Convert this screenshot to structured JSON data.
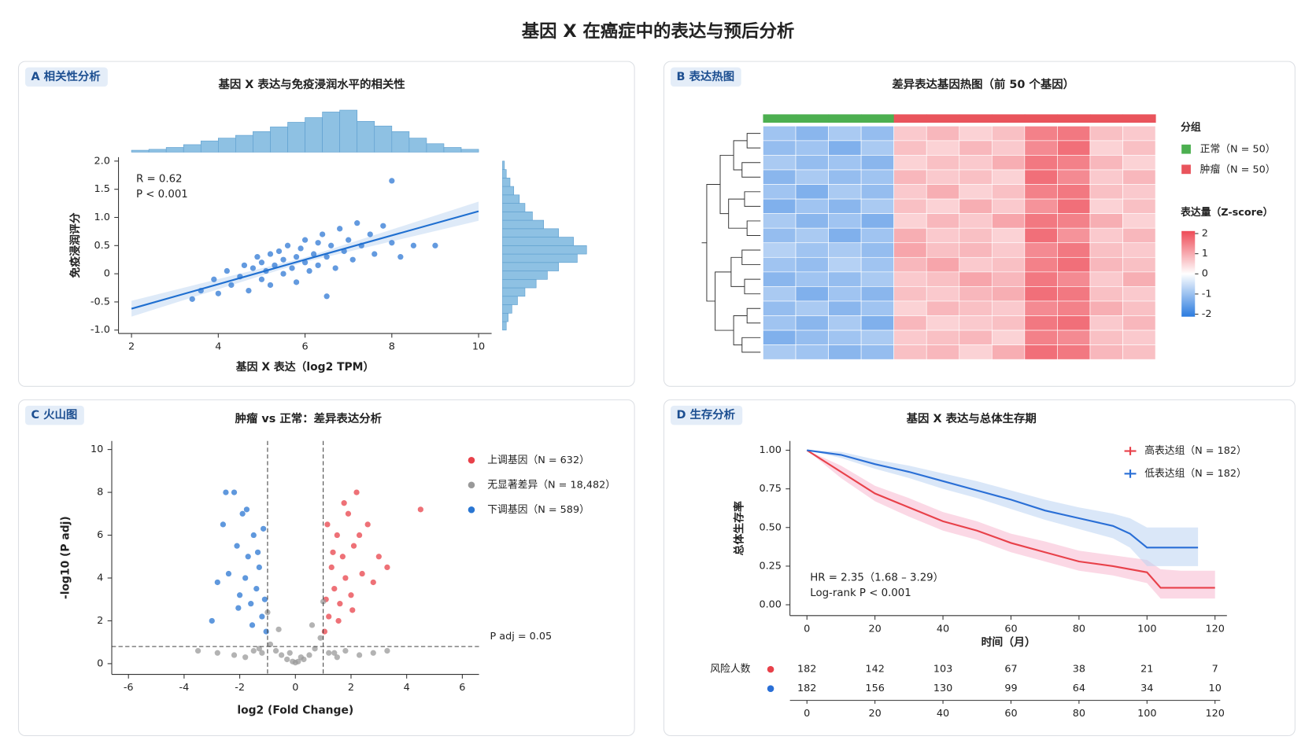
{
  "title": "基因 X 在癌症中的表达与预后分析",
  "chart_data": [
    {
      "type": "scatter",
      "panel_label": "A 相关性分析",
      "title": "基因 X 表达与免疫浸润水平的相关性",
      "x_label": "基因 X 表达（log2 TPM）",
      "y_label": "免疫浸润评分",
      "annotations": [
        "R = 0.62",
        "P < 0.001"
      ],
      "xlim": [
        1.7,
        10.3
      ],
      "xticks": [
        2,
        4,
        6,
        8,
        10
      ],
      "ylim": [
        -1.06,
        2.07
      ],
      "yticks": [
        {
          "value": -1,
          "label": "-1.0"
        },
        -0.5,
        0,
        0.5,
        {
          "value": 1,
          "label": "1.0"
        },
        1.5,
        {
          "value": 2,
          "label": "2.0"
        }
      ],
      "series": [
        {
          "color": "#2f78d4",
          "x": [
            3.4,
            3.6,
            3.9,
            4.0,
            4.2,
            4.3,
            4.5,
            4.6,
            4.7,
            4.8,
            4.9,
            5.0,
            5.0,
            5.1,
            5.2,
            5.2,
            5.3,
            5.4,
            5.5,
            5.5,
            5.6,
            5.7,
            5.8,
            5.8,
            5.9,
            6.0,
            6.0,
            6.1,
            6.2,
            6.3,
            6.3,
            6.4,
            6.5,
            6.6,
            6.7,
            6.8,
            6.9,
            7.0,
            7.1,
            7.2,
            7.3,
            7.5,
            7.6,
            7.8,
            8.0,
            8.0,
            8.2,
            8.5,
            9.0,
            6.5
          ],
          "values": [
            -0.45,
            -0.3,
            -0.1,
            -0.35,
            0.05,
            -0.2,
            -0.05,
            0.15,
            -0.3,
            0.1,
            0.3,
            -0.1,
            0.2,
            0.05,
            0.35,
            -0.2,
            0.15,
            0.4,
            0.0,
            0.25,
            0.5,
            0.1,
            0.3,
            -0.15,
            0.45,
            0.2,
            0.6,
            0.05,
            0.35,
            0.55,
            0.15,
            0.7,
            0.3,
            0.5,
            0.1,
            0.8,
            0.4,
            0.6,
            0.25,
            0.9,
            0.5,
            0.7,
            0.35,
            0.85,
            1.65,
            0.55,
            0.3,
            0.5,
            0.5,
            -0.4
          ]
        }
      ],
      "fit": {
        "color": "#1f6fd0",
        "x": [
          2,
          6,
          10
        ],
        "values": [
          -0.62,
          0.25,
          1.11
        ],
        "lower": [
          -0.76,
          0.21,
          0.94
        ],
        "upper": [
          -0.48,
          0.29,
          1.28
        ]
      },
      "top_hist": {
        "color": "#8ec1e3",
        "bins": [
          2,
          2.4,
          2.8,
          3.2,
          3.6,
          4,
          4.4,
          4.8,
          5.2,
          5.6,
          6,
          6.4,
          6.8,
          7.2,
          7.6,
          8,
          8.4,
          8.8,
          9.2,
          9.6,
          10
        ],
        "counts": [
          2,
          3,
          5,
          8,
          12,
          15,
          18,
          22,
          27,
          32,
          37,
          43,
          45,
          33,
          28,
          22,
          15,
          9,
          5,
          3
        ]
      },
      "right_hist": {
        "color": "#8ec1e3",
        "bins": [
          -1,
          -0.85,
          -0.7,
          -0.55,
          -0.4,
          -0.25,
          -0.1,
          0.05,
          0.2,
          0.35,
          0.5,
          0.65,
          0.8,
          0.95,
          1.1,
          1.25,
          1.4,
          1.55,
          1.7,
          1.85,
          2
        ],
        "counts": [
          2,
          3,
          5,
          8,
          12,
          18,
          24,
          30,
          40,
          45,
          38,
          30,
          22,
          16,
          12,
          9,
          6,
          4,
          2,
          1
        ]
      }
    },
    {
      "type": "heatmap",
      "panel_label": "B 表达热图",
      "title": "差异表达基因热图（前 50 个基因）",
      "groups": {
        "title": "分组",
        "names": [
          "正常（N = 50）",
          "肿瘤（N = 50）"
        ],
        "colors": [
          "#4caf50",
          "#e9545c"
        ]
      },
      "column_groups": [
        0,
        0,
        0,
        0,
        1,
        1,
        1,
        1,
        1,
        1,
        1,
        1
      ],
      "values": [
        [
          -0.9,
          -1.1,
          -0.8,
          -1.0,
          0.6,
          0.8,
          0.5,
          0.7,
          1.4,
          1.5,
          0.7,
          0.6
        ],
        [
          -1.0,
          -0.9,
          -1.2,
          -0.8,
          0.7,
          0.5,
          0.8,
          0.6,
          1.3,
          1.6,
          0.5,
          0.7
        ],
        [
          -0.8,
          -1.0,
          -0.9,
          -1.1,
          0.5,
          0.7,
          0.6,
          0.9,
          1.5,
          1.4,
          0.8,
          0.5
        ],
        [
          -1.1,
          -0.8,
          -1.0,
          -0.9,
          0.8,
          0.6,
          0.7,
          0.5,
          1.6,
          1.3,
          0.6,
          0.8
        ],
        [
          -0.9,
          -1.2,
          -0.8,
          -1.0,
          0.6,
          0.9,
          0.5,
          0.7,
          1.4,
          1.5,
          0.7,
          0.6
        ],
        [
          -1.2,
          -0.9,
          -1.1,
          -0.8,
          0.7,
          0.5,
          0.9,
          0.6,
          1.2,
          1.6,
          0.5,
          0.7
        ],
        [
          -0.8,
          -1.1,
          -0.9,
          -1.2,
          0.5,
          0.8,
          0.6,
          1.0,
          1.5,
          1.4,
          0.9,
          0.5
        ],
        [
          -1.0,
          -0.8,
          -1.2,
          -0.9,
          0.9,
          0.6,
          0.7,
          0.5,
          1.6,
          1.2,
          0.6,
          0.8
        ],
        [
          -0.7,
          -0.9,
          -0.8,
          -1.0,
          1.0,
          0.7,
          0.8,
          0.6,
          1.3,
          1.5,
          0.7,
          0.6
        ],
        [
          -0.9,
          -1.0,
          -0.7,
          -0.9,
          0.8,
          1.0,
          0.6,
          0.7,
          1.4,
          1.6,
          0.8,
          0.7
        ],
        [
          -1.1,
          -0.9,
          -1.0,
          -0.8,
          0.6,
          0.7,
          1.0,
          0.8,
          1.5,
          1.3,
          0.6,
          0.9
        ],
        [
          -0.8,
          -1.2,
          -0.9,
          -1.1,
          0.7,
          0.6,
          0.8,
          0.9,
          1.6,
          1.5,
          0.7,
          0.6
        ],
        [
          -1.0,
          -0.8,
          -1.1,
          -0.9,
          0.5,
          0.8,
          0.7,
          0.6,
          1.3,
          1.4,
          0.9,
          0.7
        ],
        [
          -0.9,
          -1.1,
          -0.8,
          -1.2,
          0.8,
          0.5,
          0.6,
          0.7,
          1.5,
          1.6,
          0.6,
          0.8
        ],
        [
          -1.2,
          -1.0,
          -0.9,
          -0.8,
          0.6,
          0.7,
          0.8,
          0.5,
          1.4,
          1.3,
          0.7,
          0.6
        ],
        [
          -0.8,
          -0.9,
          -1.1,
          -1.0,
          0.7,
          0.8,
          0.5,
          0.9,
          1.6,
          1.5,
          0.8,
          0.7
        ]
      ],
      "colorbar": {
        "title": "表达量（Z-score）",
        "lim": [
          -2,
          2
        ],
        "ticks": [
          2,
          1,
          0,
          -1,
          -2
        ],
        "colors": [
          "#2b7bdf",
          "#ffffff",
          "#ee4b57"
        ]
      }
    },
    {
      "type": "scatter",
      "panel_label": "C 火山图",
      "title": "肿瘤 vs 正常：差异表达分析",
      "x_label": "log2 (Fold Change)",
      "y_label": "-log10 (P adj)",
      "xlim": [
        -6.6,
        6.6
      ],
      "xticks": [
        -6,
        -4,
        -2,
        0,
        2,
        4,
        6
      ],
      "ylim": [
        -0.5,
        10.4
      ],
      "yticks": [
        0,
        2,
        4,
        6,
        8,
        10
      ],
      "legend": "upper right",
      "vlines": [
        -1,
        1
      ],
      "hline": {
        "value": 0.8,
        "label": "P adj = 0.05"
      },
      "series": [
        {
          "name": "上调基因（N = 632）",
          "color": "#e8414a",
          "x": [
            1.05,
            1.1,
            1.2,
            1.3,
            1.4,
            1.5,
            1.6,
            1.7,
            1.8,
            1.9,
            2.0,
            2.1,
            2.2,
            2.4,
            2.6,
            2.8,
            3.0,
            3.3,
            4.5,
            1.15,
            1.35,
            1.55,
            1.75,
            2.05,
            2.3
          ],
          "values": [
            1.5,
            3.0,
            2.2,
            4.5,
            3.5,
            6.0,
            2.8,
            5.0,
            4.0,
            7.0,
            3.2,
            5.5,
            8.0,
            4.2,
            6.5,
            3.8,
            5.0,
            4.5,
            7.2,
            6.5,
            5.2,
            2.0,
            7.5,
            2.5,
            6.0
          ]
        },
        {
          "name": "无显著差异（N = 18,482）",
          "color": "#999999",
          "x": [
            -3.5,
            -2.8,
            -2.2,
            -1.8,
            -1.5,
            -1.2,
            -0.9,
            -0.7,
            -0.5,
            -0.3,
            -0.1,
            0.0,
            0.1,
            0.3,
            0.5,
            0.7,
            0.9,
            1.2,
            1.5,
            1.8,
            2.3,
            2.8,
            3.3,
            -0.6,
            0.6,
            -1.0,
            1.0,
            -0.2,
            0.2,
            -1.3,
            1.4
          ],
          "values": [
            0.6,
            0.5,
            0.4,
            0.3,
            0.6,
            0.5,
            0.9,
            0.6,
            0.4,
            0.2,
            0.1,
            0.05,
            0.1,
            0.2,
            0.4,
            0.7,
            1.2,
            0.5,
            0.3,
            0.6,
            0.4,
            0.5,
            0.6,
            1.6,
            1.8,
            2.4,
            2.9,
            0.5,
            0.3,
            0.7,
            0.5
          ]
        },
        {
          "name": "下调基因（N = 589）",
          "color": "#2a76d2",
          "x": [
            -1.05,
            -1.1,
            -1.2,
            -1.3,
            -1.4,
            -1.5,
            -1.6,
            -1.7,
            -1.8,
            -1.9,
            -2.0,
            -2.1,
            -2.2,
            -2.4,
            -2.6,
            -2.8,
            -3.0,
            -2.5,
            -1.15,
            -1.35,
            -1.55,
            -1.75,
            -2.05
          ],
          "values": [
            1.5,
            3.0,
            2.2,
            4.5,
            3.5,
            6.0,
            2.8,
            5.0,
            4.0,
            7.0,
            3.2,
            5.5,
            8.0,
            4.2,
            6.5,
            3.8,
            2.0,
            8.0,
            6.3,
            5.2,
            1.8,
            7.2,
            2.6
          ]
        }
      ]
    },
    {
      "type": "line",
      "panel_label": "D 生存分析",
      "title": "基因 X 表达与总体生存期",
      "x_label": "时间（月）",
      "y_label": "总体生存率",
      "xlim": [
        -5,
        123.5
      ],
      "xticks": [
        0,
        20,
        40,
        60,
        80,
        100,
        120
      ],
      "ylim": [
        -0.07,
        1.06
      ],
      "yticks": [
        {
          "value": 0,
          "label": "0.00"
        },
        0.25,
        {
          "value": 0.5,
          "label": "0.50"
        },
        0.75,
        {
          "value": 1,
          "label": "1.00"
        }
      ],
      "legend": "upper right",
      "annotations": [
        "HR = 2.35（1.68 – 3.29）",
        "Log-rank P < 0.001"
      ],
      "series": [
        {
          "name": "高表达组（N = 182）",
          "color": "#e8414a",
          "band_color": "#f7b8cf",
          "x": [
            0,
            10,
            20,
            30,
            40,
            50,
            60,
            70,
            80,
            90,
            100,
            104,
            110,
            120
          ],
          "values": [
            1,
            0.86,
            0.72,
            0.63,
            0.54,
            0.48,
            0.4,
            0.34,
            0.28,
            0.25,
            0.21,
            0.11,
            0.11,
            0.11
          ],
          "lower": [
            1,
            0.82,
            0.67,
            0.57,
            0.48,
            0.42,
            0.34,
            0.28,
            0.22,
            0.19,
            0.14,
            0.04,
            0.04,
            0.04
          ],
          "upper": [
            1,
            0.9,
            0.77,
            0.69,
            0.6,
            0.54,
            0.46,
            0.41,
            0.35,
            0.32,
            0.29,
            0.23,
            0.22,
            0.22
          ]
        },
        {
          "name": "低表达组（N = 182）",
          "color": "#2a6fd6",
          "band_color": "#bcd3f3",
          "x": [
            0,
            10,
            20,
            30,
            40,
            50,
            60,
            70,
            80,
            90,
            95,
            100,
            110,
            115
          ],
          "values": [
            1,
            0.97,
            0.91,
            0.86,
            0.8,
            0.74,
            0.68,
            0.61,
            0.56,
            0.51,
            0.46,
            0.37,
            0.37,
            0.37
          ],
          "lower": [
            1,
            0.95,
            0.88,
            0.82,
            0.75,
            0.69,
            0.62,
            0.55,
            0.49,
            0.43,
            0.37,
            0.25,
            0.25,
            0.25
          ],
          "upper": [
            1,
            0.99,
            0.94,
            0.9,
            0.85,
            0.8,
            0.74,
            0.68,
            0.63,
            0.59,
            0.56,
            0.5,
            0.5,
            0.5
          ]
        }
      ],
      "risk_table": {
        "title": "风险人数",
        "times": [
          0,
          20,
          40,
          60,
          80,
          100,
          120
        ],
        "rows": [
          [
            182,
            142,
            103,
            67,
            38,
            21,
            7
          ],
          [
            182,
            156,
            130,
            99,
            64,
            34,
            10
          ]
        ]
      }
    }
  ]
}
